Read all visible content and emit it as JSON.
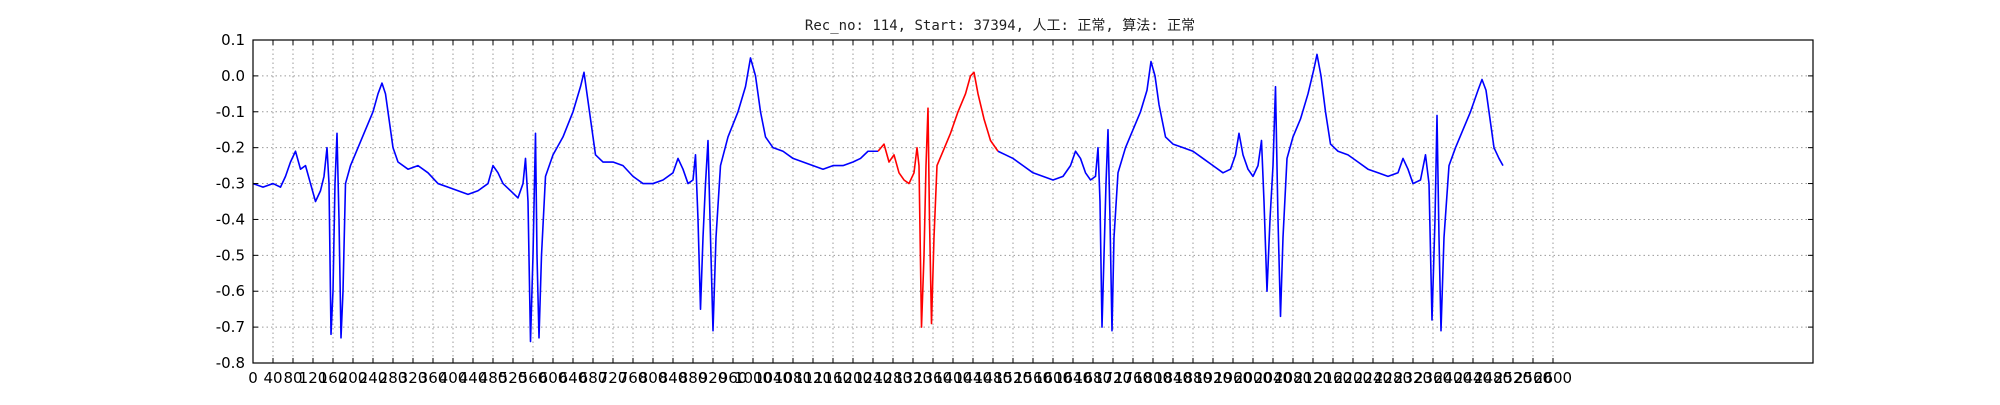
{
  "chart_data": {
    "type": "line",
    "title": "Rec_no: 114, Start: 37394, 人工: 正常, 算法: 正常",
    "xlabel": "",
    "ylabel": "",
    "xlim": [
      0,
      3120
    ],
    "ylim": [
      -0.8,
      0.1
    ],
    "x_ticks": [
      0,
      40,
      80,
      120,
      160,
      200,
      240,
      280,
      320,
      360,
      400,
      440,
      480,
      520,
      560,
      600,
      640,
      680,
      720,
      760,
      800,
      840,
      880,
      920,
      960,
      1000,
      1040,
      1080,
      1120,
      1160,
      1200,
      1240,
      1280,
      1320,
      1360,
      1400,
      1440,
      1480,
      1520,
      1560,
      1600,
      1640,
      1680,
      1720,
      1760,
      1800,
      1840,
      1880,
      1920,
      1960,
      2000,
      2040,
      2080,
      2120,
      2160,
      2200,
      2240,
      2280,
      2320,
      2360,
      2400,
      2440,
      2480,
      2520,
      2560,
      2600
    ],
    "y_ticks": [
      0.1,
      0.0,
      -0.1,
      -0.2,
      -0.3,
      -0.4,
      -0.5,
      -0.6,
      -0.7,
      -0.8
    ],
    "grid": true,
    "series_colors": {
      "baseline": "#0000ff",
      "highlight": "#ff0000"
    },
    "highlight_range": [
      1250,
      1490
    ],
    "series": [
      {
        "color": "#0000ff",
        "points": [
          [
            0,
            -0.3
          ],
          [
            20,
            -0.31
          ],
          [
            40,
            -0.3
          ],
          [
            55,
            -0.31
          ],
          [
            65,
            -0.28
          ],
          [
            75,
            -0.24
          ],
          [
            85,
            -0.21
          ],
          [
            95,
            -0.26
          ],
          [
            105,
            -0.25
          ],
          [
            115,
            -0.3
          ],
          [
            125,
            -0.35
          ],
          [
            135,
            -0.32
          ],
          [
            142,
            -0.28
          ],
          [
            148,
            -0.2
          ],
          [
            152,
            -0.3
          ],
          [
            156,
            -0.72
          ],
          [
            160,
            -0.6
          ],
          [
            164,
            -0.3
          ],
          [
            168,
            -0.16
          ],
          [
            172,
            -0.4
          ],
          [
            176,
            -0.73
          ],
          [
            180,
            -0.6
          ],
          [
            185,
            -0.3
          ],
          [
            195,
            -0.25
          ],
          [
            210,
            -0.2
          ],
          [
            225,
            -0.15
          ],
          [
            240,
            -0.1
          ],
          [
            250,
            -0.05
          ],
          [
            258,
            -0.02
          ],
          [
            265,
            -0.05
          ],
          [
            272,
            -0.12
          ],
          [
            280,
            -0.2
          ],
          [
            290,
            -0.24
          ],
          [
            310,
            -0.26
          ],
          [
            330,
            -0.25
          ],
          [
            350,
            -0.27
          ],
          [
            370,
            -0.3
          ],
          [
            390,
            -0.31
          ],
          [
            410,
            -0.32
          ],
          [
            430,
            -0.33
          ],
          [
            450,
            -0.32
          ],
          [
            470,
            -0.3
          ],
          [
            480,
            -0.25
          ],
          [
            490,
            -0.27
          ],
          [
            500,
            -0.3
          ],
          [
            515,
            -0.32
          ],
          [
            530,
            -0.34
          ],
          [
            540,
            -0.3
          ],
          [
            545,
            -0.23
          ],
          [
            550,
            -0.35
          ],
          [
            555,
            -0.74
          ],
          [
            560,
            -0.5
          ],
          [
            565,
            -0.16
          ],
          [
            568,
            -0.5
          ],
          [
            572,
            -0.73
          ],
          [
            577,
            -0.5
          ],
          [
            585,
            -0.28
          ],
          [
            600,
            -0.22
          ],
          [
            620,
            -0.17
          ],
          [
            640,
            -0.1
          ],
          [
            655,
            -0.03
          ],
          [
            662,
            0.01
          ],
          [
            668,
            -0.05
          ],
          [
            675,
            -0.12
          ],
          [
            685,
            -0.22
          ],
          [
            700,
            -0.24
          ],
          [
            720,
            -0.24
          ],
          [
            740,
            -0.25
          ],
          [
            760,
            -0.28
          ],
          [
            780,
            -0.3
          ],
          [
            800,
            -0.3
          ],
          [
            820,
            -0.29
          ],
          [
            840,
            -0.27
          ],
          [
            850,
            -0.23
          ],
          [
            860,
            -0.26
          ],
          [
            870,
            -0.3
          ],
          [
            880,
            -0.29
          ],
          [
            885,
            -0.22
          ],
          [
            890,
            -0.4
          ],
          [
            895,
            -0.65
          ],
          [
            900,
            -0.45
          ],
          [
            905,
            -0.3
          ],
          [
            910,
            -0.18
          ],
          [
            915,
            -0.45
          ],
          [
            920,
            -0.71
          ],
          [
            926,
            -0.45
          ],
          [
            935,
            -0.25
          ],
          [
            950,
            -0.17
          ],
          [
            970,
            -0.1
          ],
          [
            985,
            -0.03
          ],
          [
            995,
            0.05
          ],
          [
            1005,
            0.0
          ],
          [
            1015,
            -0.1
          ],
          [
            1025,
            -0.17
          ],
          [
            1040,
            -0.2
          ],
          [
            1060,
            -0.21
          ],
          [
            1080,
            -0.23
          ],
          [
            1100,
            -0.24
          ],
          [
            1120,
            -0.25
          ],
          [
            1140,
            -0.26
          ],
          [
            1160,
            -0.25
          ],
          [
            1180,
            -0.25
          ],
          [
            1200,
            -0.24
          ],
          [
            1215,
            -0.23
          ],
          [
            1230,
            -0.21
          ],
          [
            1250,
            -0.21
          ]
        ]
      },
      {
        "color": "#ff0000",
        "points": [
          [
            1250,
            -0.21
          ],
          [
            1262,
            -0.19
          ],
          [
            1272,
            -0.24
          ],
          [
            1282,
            -0.22
          ],
          [
            1292,
            -0.27
          ],
          [
            1302,
            -0.29
          ],
          [
            1312,
            -0.3
          ],
          [
            1322,
            -0.27
          ],
          [
            1328,
            -0.2
          ],
          [
            1332,
            -0.25
          ],
          [
            1337,
            -0.7
          ],
          [
            1342,
            -0.5
          ],
          [
            1346,
            -0.25
          ],
          [
            1350,
            -0.09
          ],
          [
            1353,
            -0.4
          ],
          [
            1357,
            -0.69
          ],
          [
            1362,
            -0.45
          ],
          [
            1368,
            -0.25
          ],
          [
            1380,
            -0.21
          ],
          [
            1395,
            -0.16
          ],
          [
            1410,
            -0.1
          ],
          [
            1425,
            -0.05
          ],
          [
            1435,
            0.0
          ],
          [
            1442,
            0.01
          ],
          [
            1450,
            -0.05
          ],
          [
            1462,
            -0.12
          ],
          [
            1475,
            -0.18
          ],
          [
            1490,
            -0.21
          ]
        ]
      },
      {
        "color": "#0000ff",
        "points": [
          [
            1490,
            -0.21
          ],
          [
            1505,
            -0.22
          ],
          [
            1520,
            -0.23
          ],
          [
            1540,
            -0.25
          ],
          [
            1560,
            -0.27
          ],
          [
            1580,
            -0.28
          ],
          [
            1600,
            -0.29
          ],
          [
            1620,
            -0.28
          ],
          [
            1635,
            -0.25
          ],
          [
            1645,
            -0.21
          ],
          [
            1655,
            -0.23
          ],
          [
            1665,
            -0.27
          ],
          [
            1675,
            -0.29
          ],
          [
            1685,
            -0.28
          ],
          [
            1690,
            -0.2
          ],
          [
            1694,
            -0.35
          ],
          [
            1698,
            -0.7
          ],
          [
            1702,
            -0.5
          ],
          [
            1706,
            -0.3
          ],
          [
            1710,
            -0.15
          ],
          [
            1714,
            -0.4
          ],
          [
            1718,
            -0.71
          ],
          [
            1722,
            -0.45
          ],
          [
            1730,
            -0.27
          ],
          [
            1745,
            -0.2
          ],
          [
            1760,
            -0.15
          ],
          [
            1775,
            -0.1
          ],
          [
            1788,
            -0.04
          ],
          [
            1796,
            0.04
          ],
          [
            1804,
            0.0
          ],
          [
            1812,
            -0.08
          ],
          [
            1825,
            -0.17
          ],
          [
            1840,
            -0.19
          ],
          [
            1860,
            -0.2
          ],
          [
            1880,
            -0.21
          ],
          [
            1900,
            -0.23
          ],
          [
            1920,
            -0.25
          ],
          [
            1940,
            -0.27
          ],
          [
            1955,
            -0.26
          ],
          [
            1965,
            -0.22
          ],
          [
            1972,
            -0.16
          ],
          [
            1980,
            -0.22
          ],
          [
            1990,
            -0.26
          ],
          [
            2000,
            -0.28
          ],
          [
            2010,
            -0.25
          ],
          [
            2017,
            -0.18
          ],
          [
            2022,
            -0.35
          ],
          [
            2028,
            -0.6
          ],
          [
            2034,
            -0.4
          ],
          [
            2040,
            -0.25
          ],
          [
            2045,
            -0.03
          ],
          [
            2050,
            -0.4
          ],
          [
            2055,
            -0.67
          ],
          [
            2060,
            -0.45
          ],
          [
            2068,
            -0.23
          ],
          [
            2080,
            -0.17
          ],
          [
            2095,
            -0.12
          ],
          [
            2110,
            -0.05
          ],
          [
            2122,
            0.02
          ],
          [
            2128,
            0.06
          ],
          [
            2136,
            0.0
          ],
          [
            2145,
            -0.1
          ],
          [
            2155,
            -0.19
          ],
          [
            2170,
            -0.21
          ],
          [
            2190,
            -0.22
          ],
          [
            2210,
            -0.24
          ],
          [
            2230,
            -0.26
          ],
          [
            2250,
            -0.27
          ],
          [
            2270,
            -0.28
          ],
          [
            2290,
            -0.27
          ],
          [
            2300,
            -0.23
          ],
          [
            2310,
            -0.26
          ],
          [
            2320,
            -0.3
          ],
          [
            2335,
            -0.29
          ],
          [
            2345,
            -0.22
          ],
          [
            2352,
            -0.3
          ],
          [
            2358,
            -0.68
          ],
          [
            2364,
            -0.4
          ],
          [
            2368,
            -0.11
          ],
          [
            2372,
            -0.45
          ],
          [
            2376,
            -0.71
          ],
          [
            2382,
            -0.45
          ],
          [
            2392,
            -0.25
          ],
          [
            2405,
            -0.2
          ],
          [
            2420,
            -0.15
          ],
          [
            2435,
            -0.1
          ],
          [
            2450,
            -0.04
          ],
          [
            2458,
            -0.01
          ],
          [
            2466,
            -0.04
          ],
          [
            2474,
            -0.12
          ],
          [
            2482,
            -0.2
          ],
          [
            2492,
            -0.23
          ],
          [
            2500,
            -0.25
          ]
        ]
      }
    ]
  }
}
